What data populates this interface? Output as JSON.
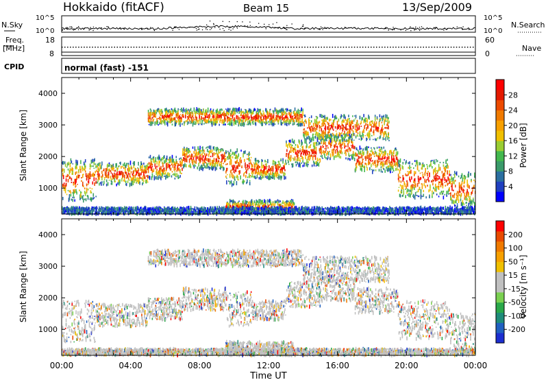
{
  "header": {
    "station": "Hokkaido (fitACF)",
    "beam": "Beam 15",
    "date": "13/Sep/2009"
  },
  "top_panels": {
    "nsky_label": "N.Sky",
    "nsky_ticks": [
      "10^5",
      "10^0"
    ],
    "nsearch_label": "N.Search",
    "nsearch_ticks": [
      "10^5",
      "10^0"
    ],
    "freq_label": "Freq.",
    "freq_unit": "[MHz]",
    "freq_ticks": [
      "18",
      "8"
    ],
    "nave_label": "Nave",
    "nave_ticks": [
      "60",
      "0"
    ],
    "cpid_label": "CPID",
    "cpid_value": "normal (fast) -151"
  },
  "chart_data": [
    {
      "type": "heatmap",
      "name": "power",
      "ylabel": "Slant Range [km]",
      "ylim": [
        180,
        4500
      ],
      "yticks": [
        "1000",
        "2000",
        "3000",
        "4000"
      ],
      "xlim": [
        0,
        24
      ],
      "colorbar_label": "Power [dB]",
      "colorbar_ticks": [
        "28",
        "24",
        "20",
        "16",
        "12",
        "8",
        "4"
      ],
      "colorbar_colors": [
        "#0000ff",
        "#2040c0",
        "#2b6fa0",
        "#3a9a6a",
        "#43b84e",
        "#9acd32",
        "#f0c000",
        "#f7a000",
        "#f07a00",
        "#ec4a00",
        "#e41a00",
        "#ff0000"
      ],
      "echo_bands": [
        {
          "t0": 0.0,
          "t1": 2.0,
          "r0": 600,
          "r1": 1900
        },
        {
          "t0": 2.0,
          "t1": 5.0,
          "r0": 1100,
          "r1": 1800
        },
        {
          "t0": 5.0,
          "t1": 7.0,
          "r0": 1300,
          "r1": 2000
        },
        {
          "t0": 7.0,
          "t1": 9.5,
          "r0": 1600,
          "r1": 2300
        },
        {
          "t0": 9.5,
          "t1": 11.0,
          "r0": 1100,
          "r1": 2200
        },
        {
          "t0": 11.0,
          "t1": 13.0,
          "r0": 1300,
          "r1": 1900
        },
        {
          "t0": 13.0,
          "t1": 15.0,
          "r0": 1700,
          "r1": 2500
        },
        {
          "t0": 15.0,
          "t1": 17.0,
          "r0": 1900,
          "r1": 2700
        },
        {
          "t0": 17.0,
          "t1": 19.5,
          "r0": 1500,
          "r1": 2300
        },
        {
          "t0": 19.5,
          "t1": 22.5,
          "r0": 700,
          "r1": 1900
        },
        {
          "t0": 22.5,
          "t1": 24.0,
          "r0": 400,
          "r1": 1500
        },
        {
          "t0": 5.0,
          "t1": 14.0,
          "r0": 3000,
          "r1": 3500
        },
        {
          "t0": 14.0,
          "t1": 19.0,
          "r0": 2500,
          "r1": 3300
        },
        {
          "t0": 9.5,
          "t1": 13.5,
          "r0": 180,
          "r1": 600
        },
        {
          "t0": 0.0,
          "t1": 24.0,
          "r0": 180,
          "r1": 380
        }
      ]
    },
    {
      "type": "heatmap",
      "name": "velocity",
      "ylabel": "Slant Range [km]",
      "xlabel": "Time UT",
      "ylim": [
        180,
        4500
      ],
      "yticks": [
        "1000",
        "2000",
        "3000",
        "4000"
      ],
      "xlim": [
        0,
        24
      ],
      "xticks": [
        "00:00",
        "04:00",
        "08:00",
        "12:00",
        "16:00",
        "20:00",
        "00:00"
      ],
      "colorbar_label": "Velocity [m s⁻¹]",
      "colorbar_ticks": [
        "200",
        "100",
        "50",
        "15",
        "-15",
        "-50",
        "-100",
        "-200"
      ],
      "colorbar_colors": [
        "#1c2ed0",
        "#2060c0",
        "#1f8c7a",
        "#2aa84a",
        "#7ad050",
        "#c0c0c0",
        "#c0c0c0",
        "#f0c000",
        "#f7a000",
        "#f07a00",
        "#e84a00",
        "#ff0000"
      ],
      "echo_bands": [
        {
          "t0": 0.0,
          "t1": 2.0,
          "r0": 600,
          "r1": 1900
        },
        {
          "t0": 2.0,
          "t1": 5.0,
          "r0": 1100,
          "r1": 1800
        },
        {
          "t0": 5.0,
          "t1": 7.0,
          "r0": 1300,
          "r1": 2000
        },
        {
          "t0": 7.0,
          "t1": 9.5,
          "r0": 1600,
          "r1": 2300
        },
        {
          "t0": 9.5,
          "t1": 11.0,
          "r0": 1100,
          "r1": 2200
        },
        {
          "t0": 11.0,
          "t1": 13.0,
          "r0": 1300,
          "r1": 1900
        },
        {
          "t0": 13.0,
          "t1": 15.0,
          "r0": 1700,
          "r1": 2500
        },
        {
          "t0": 15.0,
          "t1": 17.0,
          "r0": 1900,
          "r1": 2700
        },
        {
          "t0": 17.0,
          "t1": 19.5,
          "r0": 1500,
          "r1": 2300
        },
        {
          "t0": 19.5,
          "t1": 22.5,
          "r0": 700,
          "r1": 1900
        },
        {
          "t0": 22.5,
          "t1": 24.0,
          "r0": 400,
          "r1": 1500
        },
        {
          "t0": 5.0,
          "t1": 14.0,
          "r0": 3000,
          "r1": 3500
        },
        {
          "t0": 14.0,
          "t1": 19.0,
          "r0": 2500,
          "r1": 3300
        },
        {
          "t0": 9.5,
          "t1": 13.5,
          "r0": 180,
          "r1": 600
        },
        {
          "t0": 0.0,
          "t1": 24.0,
          "r0": 180,
          "r1": 380
        }
      ]
    }
  ]
}
